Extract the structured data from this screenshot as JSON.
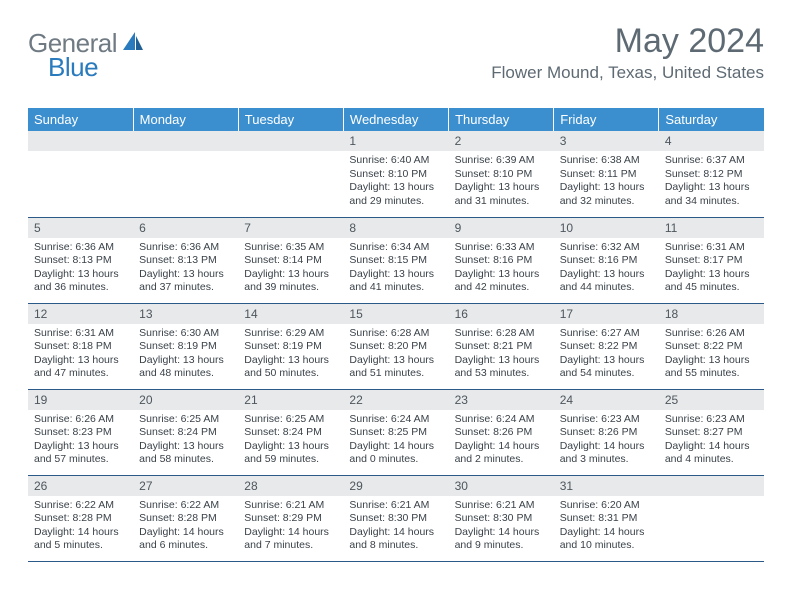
{
  "brand": {
    "part1": "General",
    "part2": "Blue"
  },
  "title": "May 2024",
  "subtitle": "Flower Mound, Texas, United States",
  "colors": {
    "headerBg": "#3c8fcf",
    "headerText": "#ffffff",
    "dayNumBg": "#e8e9ea",
    "dayNumText": "#4d565e",
    "bodyText": "#3a4249",
    "rowBorder": "#2c5a88",
    "titleText": "#5e6a73",
    "logoGray": "#6f7a83",
    "logoBlue": "#2a7bbd"
  },
  "weekdays": [
    "Sunday",
    "Monday",
    "Tuesday",
    "Wednesday",
    "Thursday",
    "Friday",
    "Saturday"
  ],
  "weeks": [
    [
      null,
      null,
      null,
      {
        "n": "1",
        "sr": "6:40 AM",
        "ss": "8:10 PM",
        "dl": "13 hours and 29 minutes."
      },
      {
        "n": "2",
        "sr": "6:39 AM",
        "ss": "8:10 PM",
        "dl": "13 hours and 31 minutes."
      },
      {
        "n": "3",
        "sr": "6:38 AM",
        "ss": "8:11 PM",
        "dl": "13 hours and 32 minutes."
      },
      {
        "n": "4",
        "sr": "6:37 AM",
        "ss": "8:12 PM",
        "dl": "13 hours and 34 minutes."
      }
    ],
    [
      {
        "n": "5",
        "sr": "6:36 AM",
        "ss": "8:13 PM",
        "dl": "13 hours and 36 minutes."
      },
      {
        "n": "6",
        "sr": "6:36 AM",
        "ss": "8:13 PM",
        "dl": "13 hours and 37 minutes."
      },
      {
        "n": "7",
        "sr": "6:35 AM",
        "ss": "8:14 PM",
        "dl": "13 hours and 39 minutes."
      },
      {
        "n": "8",
        "sr": "6:34 AM",
        "ss": "8:15 PM",
        "dl": "13 hours and 41 minutes."
      },
      {
        "n": "9",
        "sr": "6:33 AM",
        "ss": "8:16 PM",
        "dl": "13 hours and 42 minutes."
      },
      {
        "n": "10",
        "sr": "6:32 AM",
        "ss": "8:16 PM",
        "dl": "13 hours and 44 minutes."
      },
      {
        "n": "11",
        "sr": "6:31 AM",
        "ss": "8:17 PM",
        "dl": "13 hours and 45 minutes."
      }
    ],
    [
      {
        "n": "12",
        "sr": "6:31 AM",
        "ss": "8:18 PM",
        "dl": "13 hours and 47 minutes."
      },
      {
        "n": "13",
        "sr": "6:30 AM",
        "ss": "8:19 PM",
        "dl": "13 hours and 48 minutes."
      },
      {
        "n": "14",
        "sr": "6:29 AM",
        "ss": "8:19 PM",
        "dl": "13 hours and 50 minutes."
      },
      {
        "n": "15",
        "sr": "6:28 AM",
        "ss": "8:20 PM",
        "dl": "13 hours and 51 minutes."
      },
      {
        "n": "16",
        "sr": "6:28 AM",
        "ss": "8:21 PM",
        "dl": "13 hours and 53 minutes."
      },
      {
        "n": "17",
        "sr": "6:27 AM",
        "ss": "8:22 PM",
        "dl": "13 hours and 54 minutes."
      },
      {
        "n": "18",
        "sr": "6:26 AM",
        "ss": "8:22 PM",
        "dl": "13 hours and 55 minutes."
      }
    ],
    [
      {
        "n": "19",
        "sr": "6:26 AM",
        "ss": "8:23 PM",
        "dl": "13 hours and 57 minutes."
      },
      {
        "n": "20",
        "sr": "6:25 AM",
        "ss": "8:24 PM",
        "dl": "13 hours and 58 minutes."
      },
      {
        "n": "21",
        "sr": "6:25 AM",
        "ss": "8:24 PM",
        "dl": "13 hours and 59 minutes."
      },
      {
        "n": "22",
        "sr": "6:24 AM",
        "ss": "8:25 PM",
        "dl": "14 hours and 0 minutes."
      },
      {
        "n": "23",
        "sr": "6:24 AM",
        "ss": "8:26 PM",
        "dl": "14 hours and 2 minutes."
      },
      {
        "n": "24",
        "sr": "6:23 AM",
        "ss": "8:26 PM",
        "dl": "14 hours and 3 minutes."
      },
      {
        "n": "25",
        "sr": "6:23 AM",
        "ss": "8:27 PM",
        "dl": "14 hours and 4 minutes."
      }
    ],
    [
      {
        "n": "26",
        "sr": "6:22 AM",
        "ss": "8:28 PM",
        "dl": "14 hours and 5 minutes."
      },
      {
        "n": "27",
        "sr": "6:22 AM",
        "ss": "8:28 PM",
        "dl": "14 hours and 6 minutes."
      },
      {
        "n": "28",
        "sr": "6:21 AM",
        "ss": "8:29 PM",
        "dl": "14 hours and 7 minutes."
      },
      {
        "n": "29",
        "sr": "6:21 AM",
        "ss": "8:30 PM",
        "dl": "14 hours and 8 minutes."
      },
      {
        "n": "30",
        "sr": "6:21 AM",
        "ss": "8:30 PM",
        "dl": "14 hours and 9 minutes."
      },
      {
        "n": "31",
        "sr": "6:20 AM",
        "ss": "8:31 PM",
        "dl": "14 hours and 10 minutes."
      },
      null
    ]
  ],
  "labels": {
    "sunrise": "Sunrise:",
    "sunset": "Sunset:",
    "daylight": "Daylight:"
  }
}
